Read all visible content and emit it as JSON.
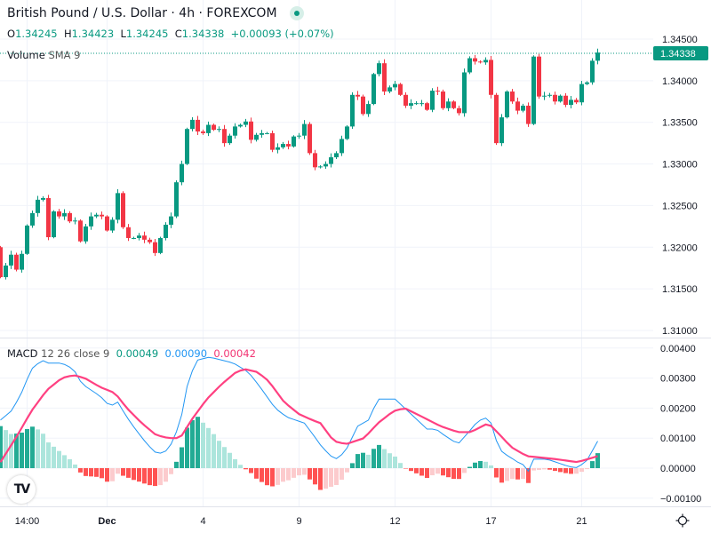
{
  "header": {
    "title": "British Pound / U.S. Dollar · 4h · FOREXCOM",
    "o_label": "O",
    "o": "1.34245",
    "h_label": "H",
    "h": "1.34423",
    "l_label": "L",
    "l": "1.34245",
    "c_label": "C",
    "c": "1.34338",
    "change": "+0.00093 (+0.07%)"
  },
  "volume_legend": {
    "name": "Volume",
    "params": "SMA 9"
  },
  "macd_legend": {
    "name": "MACD",
    "params": "12 26 close 9",
    "histogram": "0.00049",
    "macd": "0.00090",
    "signal": "0.00042"
  },
  "current_price_label": "1.34338",
  "logo_text": "TV",
  "colors": {
    "up": "#089981",
    "down": "#f23645",
    "macd": "#2196f3",
    "signal": "#ff4081",
    "hist_up_strong": "#22ab94",
    "hist_up_weak": "#ace5dc",
    "hist_down_strong": "#ff5252",
    "hist_down_weak": "#fccbcd"
  },
  "chart_data": [
    {
      "type": "candlestick",
      "title": "British Pound / U.S. Dollar · 4h · FOREXCOM",
      "first_open": 1.32,
      "closes": [
        1.3164,
        1.3178,
        1.3191,
        1.3173,
        1.3192,
        1.3226,
        1.3241,
        1.3257,
        1.3259,
        1.3212,
        1.3243,
        1.3237,
        1.3241,
        1.3231,
        1.3232,
        1.3207,
        1.3225,
        1.3237,
        1.3239,
        1.3237,
        1.322,
        1.3233,
        1.3265,
        1.3224,
        1.3211,
        1.3211,
        1.3214,
        1.3209,
        1.3206,
        1.3193,
        1.3211,
        1.3227,
        1.3237,
        1.3278,
        1.33,
        1.3342,
        1.3353,
        1.3339,
        1.3337,
        1.3347,
        1.3341,
        1.3342,
        1.3325,
        1.3334,
        1.3345,
        1.3347,
        1.3351,
        1.3329,
        1.3335,
        1.3337,
        1.3337,
        1.3317,
        1.332,
        1.3324,
        1.3321,
        1.3333,
        1.3334,
        1.3348,
        1.3313,
        1.3296,
        1.3297,
        1.33,
        1.3308,
        1.3313,
        1.333,
        1.3345,
        1.3383,
        1.3381,
        1.336,
        1.3372,
        1.3408,
        1.3421,
        1.3387,
        1.3392,
        1.3396,
        1.3383,
        1.337,
        1.3373,
        1.3373,
        1.3373,
        1.3365,
        1.3388,
        1.3387,
        1.3367,
        1.3375,
        1.3367,
        1.3361,
        1.341,
        1.3427,
        1.3423,
        1.3422,
        1.3425,
        1.3383,
        1.3325,
        1.3356,
        1.3387,
        1.3375,
        1.3364,
        1.337,
        1.3348,
        1.3429,
        1.3381,
        1.3382,
        1.3383,
        1.3375,
        1.3382,
        1.3371,
        1.3377,
        1.3374,
        1.3396,
        1.3398,
        1.3424,
        1.34338
      ],
      "y_ticks": [
        "1.34500",
        "1.34000",
        "1.33500",
        "1.33000",
        "1.32500",
        "1.32000",
        "1.31500",
        "1.31000"
      ],
      "y_tick_values": [
        1.345,
        1.34,
        1.335,
        1.33,
        1.325,
        1.32,
        1.315,
        1.31
      ],
      "ylim": [
        1.3095,
        1.3505
      ],
      "x_ticks": [
        {
          "label": "14:00",
          "index": 5
        },
        {
          "label": "Dec",
          "index": 20,
          "bold": true
        },
        {
          "label": "4",
          "index": 38
        },
        {
          "label": "9",
          "index": 56
        },
        {
          "label": "12",
          "index": 74
        },
        {
          "label": "17",
          "index": 92
        },
        {
          "label": "21",
          "index": 109
        }
      ],
      "last_price": 1.34338
    },
    {
      "type": "line",
      "title": "MACD 12 26 close 9",
      "macd_points": [
        [
          0,
          0.0016
        ],
        [
          2,
          0.0019
        ],
        [
          3.7,
          0.0024
        ],
        [
          5.8,
          0.0033
        ],
        [
          7.8,
          0.0036
        ],
        [
          8.7,
          0.0035
        ],
        [
          11.5,
          0.0035
        ],
        [
          13.7,
          0.0033
        ],
        [
          15.3,
          0.0028
        ],
        [
          17,
          0.0026
        ],
        [
          18.7,
          0.0024
        ],
        [
          20.3,
          0.0021
        ],
        [
          21.2,
          0.0021
        ],
        [
          22,
          0.0022
        ],
        [
          23.7,
          0.0017
        ],
        [
          25.3,
          0.0013
        ],
        [
          27.5,
          0.0008
        ],
        [
          29.2,
          0.0005
        ],
        [
          30.7,
          0.0005
        ],
        [
          32,
          0.0008
        ],
        [
          33.7,
          0.0015
        ],
        [
          35.3,
          0.003
        ],
        [
          37,
          0.0036
        ],
        [
          39.2,
          0.0037
        ],
        [
          41.5,
          0.0036
        ],
        [
          43.7,
          0.0035
        ],
        [
          46.5,
          0.0032
        ],
        [
          48.7,
          0.0027
        ],
        [
          51.5,
          0.002
        ],
        [
          53.7,
          0.0017
        ],
        [
          57,
          0.0015
        ],
        [
          58.7,
          0.0011
        ],
        [
          60.3,
          0.0007
        ],
        [
          62,
          0.0004
        ],
        [
          63.2,
          0.0003
        ],
        [
          64.8,
          0.0006
        ],
        [
          67,
          0.0014
        ],
        [
          69,
          0.0016
        ],
        [
          70.8,
          0.0023
        ],
        [
          74,
          0.0023
        ],
        [
          75.8,
          0.002
        ],
        [
          78.2,
          0.0016
        ],
        [
          80,
          0.0013
        ],
        [
          81.7,
          0.0013
        ],
        [
          83.2,
          0.0011
        ],
        [
          85.8,
          0.0008
        ],
        [
          87.8,
          0.0012
        ],
        [
          89.2,
          0.0015
        ],
        [
          90.8,
          0.0017
        ],
        [
          92,
          0.0015
        ],
        [
          93.2,
          0.0008
        ],
        [
          94.2,
          0.0005
        ],
        [
          95.3,
          0.0004
        ],
        [
          97,
          0.0002
        ],
        [
          98.2,
          0.0001
        ],
        [
          99,
          -0.0001
        ],
        [
          100,
          0.0003
        ],
        [
          102.5,
          0.0003
        ],
        [
          104.2,
          0.0002
        ],
        [
          105.8,
          0.0001
        ],
        [
          107.8,
          0.0
        ],
        [
          109.8,
          0.0002
        ],
        [
          112,
          0.0009
        ]
      ],
      "signal_points": [
        [
          0,
          0.0002
        ],
        [
          3.2,
          0.0011
        ],
        [
          5.8,
          0.0019
        ],
        [
          8.7,
          0.0026
        ],
        [
          11.5,
          0.003
        ],
        [
          13.7,
          0.0031
        ],
        [
          15.8,
          0.003
        ],
        [
          18.7,
          0.0027
        ],
        [
          21.5,
          0.0025
        ],
        [
          23.7,
          0.002
        ],
        [
          26.5,
          0.0015
        ],
        [
          29.2,
          0.0011
        ],
        [
          31.5,
          0.001
        ],
        [
          33.7,
          0.001
        ],
        [
          35.8,
          0.0016
        ],
        [
          38.7,
          0.0023
        ],
        [
          41.5,
          0.0028
        ],
        [
          44.2,
          0.0032
        ],
        [
          45.8,
          0.0033
        ],
        [
          48.2,
          0.0032
        ],
        [
          50.3,
          0.0029
        ],
        [
          53.2,
          0.0022
        ],
        [
          56,
          0.0018
        ],
        [
          58.5,
          0.0016
        ],
        [
          60,
          0.0015
        ],
        [
          62.5,
          0.0009
        ],
        [
          64.8,
          0.0008
        ],
        [
          68.2,
          0.001
        ],
        [
          70.8,
          0.0015
        ],
        [
          73.7,
          0.0019
        ],
        [
          75.8,
          0.002
        ],
        [
          79.2,
          0.0017
        ],
        [
          82.5,
          0.0014
        ],
        [
          85.8,
          0.0012
        ],
        [
          88.2,
          0.0012
        ],
        [
          91.5,
          0.0015
        ],
        [
          93.7,
          0.0011
        ],
        [
          95.8,
          0.0007
        ],
        [
          98.7,
          0.0004
        ],
        [
          104.2,
          0.0003
        ],
        [
          108.2,
          0.0002
        ],
        [
          112,
          0.0004
        ]
      ],
      "y_ticks": [
        "0.00400",
        "0.00300",
        "0.00200",
        "0.00100",
        "0.00000",
        "−0.00100"
      ],
      "y_tick_values": [
        0.004,
        0.003,
        0.002,
        0.001,
        0,
        -0.001
      ],
      "ylim": [
        -0.0012,
        0.0041
      ]
    }
  ]
}
